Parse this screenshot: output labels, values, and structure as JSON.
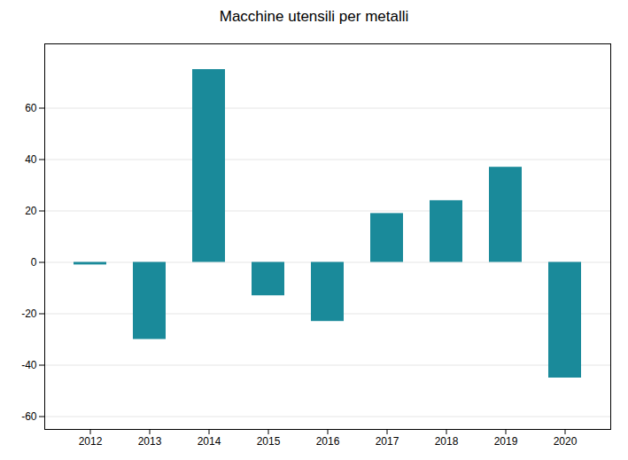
{
  "chart_data": {
    "type": "bar",
    "title": "Macchine utensili per metalli",
    "categories": [
      2012,
      2013,
      2014,
      2015,
      2016,
      2017,
      2018,
      2019,
      2020
    ],
    "values": [
      -1,
      -30,
      75,
      -13,
      -23,
      19,
      24,
      37,
      -45
    ],
    "color": "#1a8a9a",
    "ylim": [
      -65,
      85
    ],
    "yticks": [
      -60,
      -40,
      -20,
      0,
      20,
      40,
      60
    ],
    "grid": true
  }
}
